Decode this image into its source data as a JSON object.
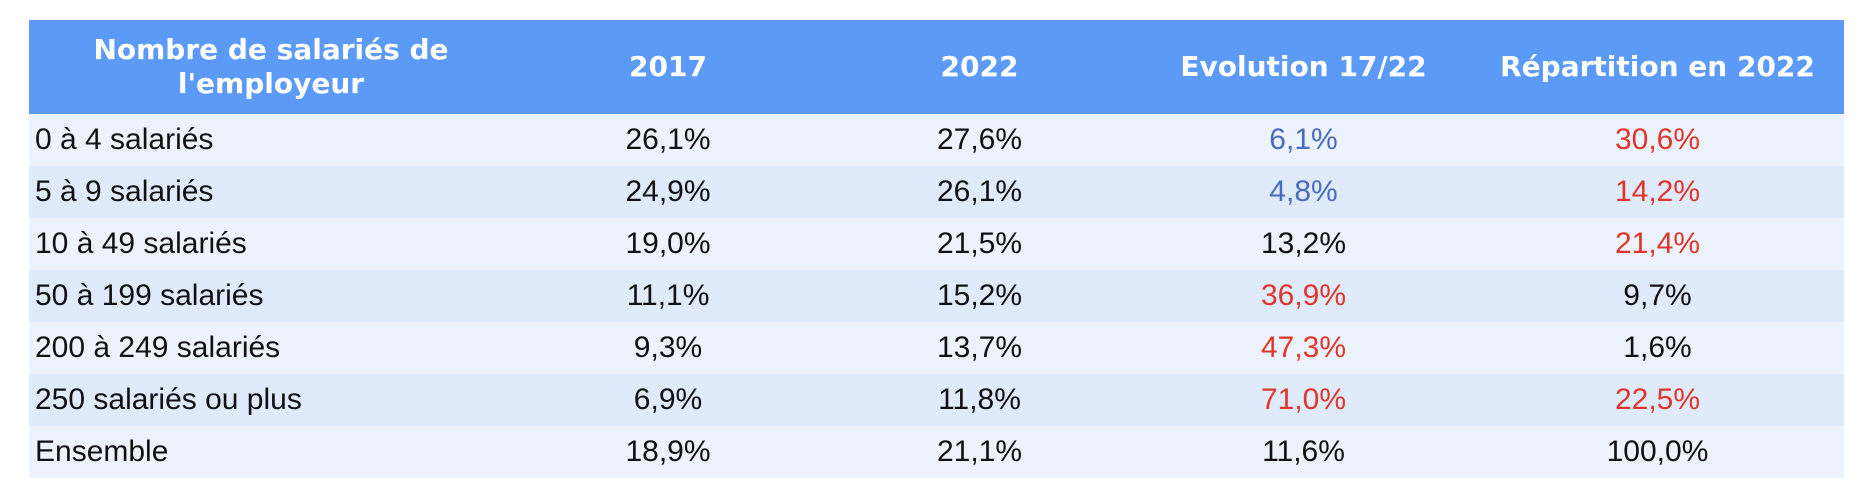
{
  "table": {
    "header": [
      "Nombre de salariés de l'employeur",
      "2017",
      "2022",
      "Evolution 17/22",
      "Répartition en 2022"
    ],
    "header_color": "#5b9bf7",
    "row_colors": [
      "#ecf3fd",
      "#dfeafa"
    ],
    "rows": [
      [
        "0 à 4 salariés",
        "26,1%",
        "27,6%",
        {
          "text": "6,1%",
          "color": "#4a6cc0"
        },
        {
          "text": "30,6%",
          "color": "#e2352c"
        }
      ],
      [
        "5 à 9 salariés",
        "24,9%",
        "26,1%",
        {
          "text": "4,8%",
          "color": "#4a6cc0"
        },
        {
          "text": "14,2%",
          "color": "#e2352c"
        }
      ],
      [
        "10 à 49 salariés",
        "19,0%",
        "21,5%",
        "13,2%",
        {
          "text": "21,4%",
          "color": "#e2352c"
        }
      ],
      [
        "50 à 199 salariés",
        "11,1%",
        "15,2%",
        {
          "text": "36,9%",
          "color": "#e2352c"
        },
        "9,7%"
      ],
      [
        "200 à 249 salariés",
        "9,3%",
        "13,7%",
        {
          "text": "47,3%",
          "color": "#e2352c"
        },
        "1,6%"
      ],
      [
        "250 salariés ou plus",
        "6,9%",
        "11,8%",
        {
          "text": "71,0%",
          "color": "#e2352c"
        },
        {
          "text": "22,5%",
          "color": "#e2352c"
        }
      ],
      [
        "Ensemble",
        "18,9%",
        "21,1%",
        "11,6%",
        "100,0%"
      ]
    ]
  }
}
